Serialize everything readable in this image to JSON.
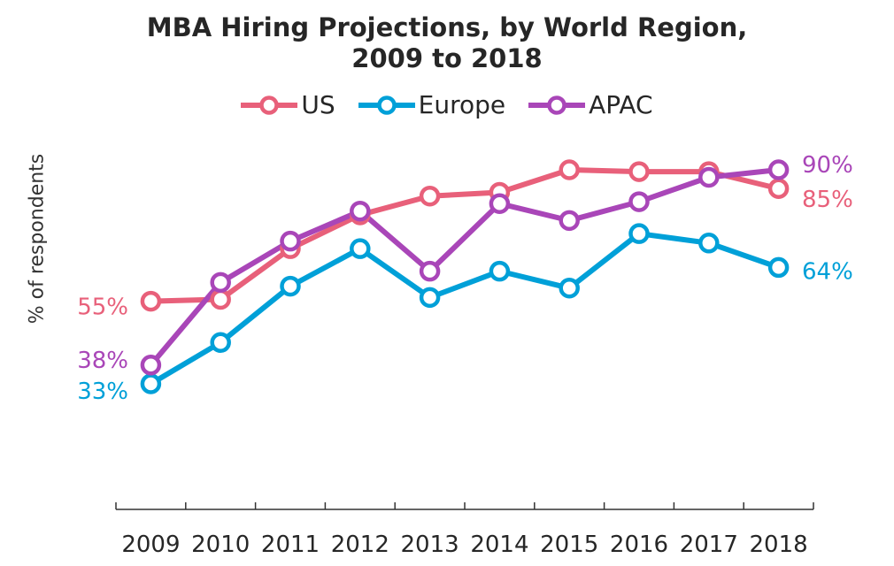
{
  "chart_data": {
    "type": "line",
    "title_line1": "MBA Hiring Projections, by World Region,",
    "title_line2": "2009 to 2018",
    "ylabel": "% of respondents",
    "xlabel": "",
    "categories": [
      "2009",
      "2010",
      "2011",
      "2012",
      "2013",
      "2014",
      "2015",
      "2016",
      "2017",
      "2018"
    ],
    "ylim": [
      20,
      95
    ],
    "grid": false,
    "legend_position": "top-center",
    "series": [
      {
        "name": "US",
        "color": "#e8607a",
        "values": [
          55,
          55.5,
          69,
          78,
          83,
          84,
          90,
          89.5,
          89.5,
          85
        ],
        "start_label": "55%",
        "end_label": "85%"
      },
      {
        "name": "Europe",
        "color": "#00a0d8",
        "values": [
          33,
          44,
          59,
          69,
          56,
          63,
          58.5,
          73,
          70.5,
          64
        ],
        "start_label": "33%",
        "end_label": "64%"
      },
      {
        "name": "APAC",
        "color": "#a946b8",
        "values": [
          38,
          60,
          71,
          79,
          63,
          81,
          76.5,
          81.5,
          88,
          90
        ],
        "start_label": "38%",
        "end_label": "90%"
      }
    ]
  }
}
